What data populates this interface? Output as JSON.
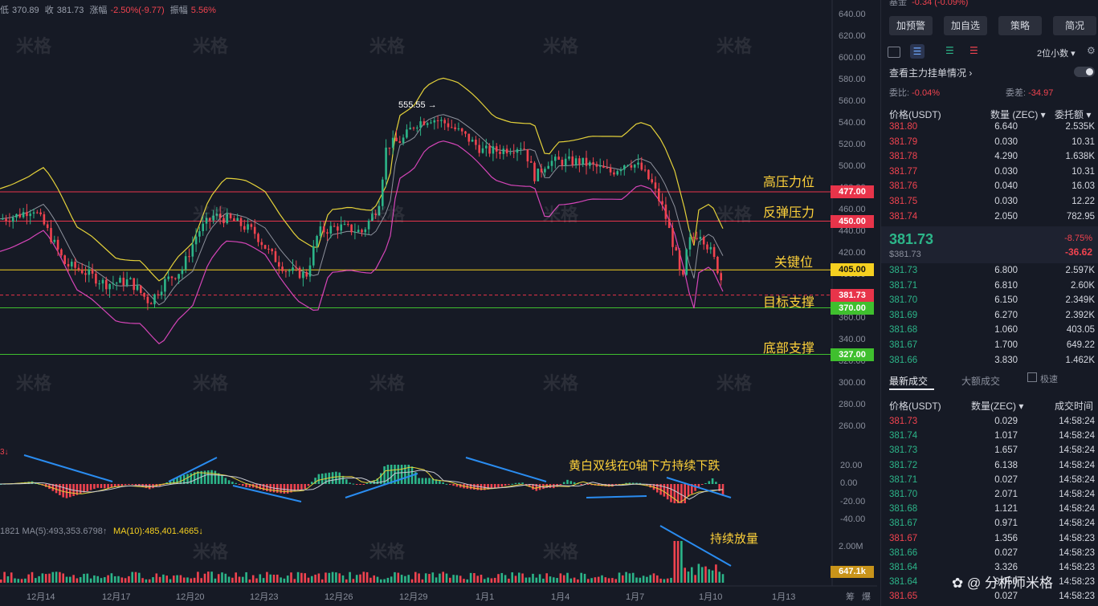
{
  "top_info": {
    "low_label": "低",
    "low_value": "370.89",
    "close_label": "收",
    "close_value": "381.73",
    "chg_label": "涨幅",
    "chg_value": "-2.50%(-9.77)",
    "amp_label": "振幅",
    "amp_value": "5.56%"
  },
  "watermark": "米格",
  "y_axis_labels": [
    "640.00",
    "620.00",
    "600.00",
    "580.00",
    "560.00",
    "540.00",
    "520.00",
    "500.00",
    "480.00",
    "460.00",
    "440.00",
    "420.00",
    "400.00",
    "380.00",
    "360.00",
    "340.00",
    "320.00",
    "300.00",
    "280.00",
    "260.00"
  ],
  "macd_axis_labels": [
    "20.00",
    "0.00",
    "-20.00",
    "-40.00"
  ],
  "vol_axis_labels": [
    "2.00M"
  ],
  "x_axis_labels": [
    "12月14",
    "12月17",
    "12月20",
    "12月23",
    "12月26",
    "12月29",
    "1月1",
    "1月4",
    "1月7",
    "1月10",
    "1月13"
  ],
  "x_axis_right": [
    "筹",
    "爆"
  ],
  "price_tags": [
    {
      "value": "477.00",
      "color": "#e8344a",
      "price": 477
    },
    {
      "value": "450.00",
      "color": "#e8344a",
      "price": 450
    },
    {
      "value": "405.00",
      "color": "#f5d020",
      "price": 405
    },
    {
      "value": "381.73",
      "color": "#e8344a",
      "price": 381.73
    },
    {
      "value": "370.00",
      "color": "#3fbf2e",
      "price": 370
    },
    {
      "value": "327.00",
      "color": "#3fbf2e",
      "price": 327
    }
  ],
  "levels": [
    {
      "label": "高压力位",
      "price": 477,
      "color": "#e8344a"
    },
    {
      "label": "反弹压力",
      "price": 450,
      "color": "#e8344a"
    },
    {
      "label": "关键位",
      "price": 405,
      "color": "#f5d020"
    },
    {
      "label": "目标支撑",
      "price": 381.73,
      "color": "#e8344a"
    },
    {
      "label": "底部支撑",
      "price": 327,
      "color": "#3fbf2e"
    }
  ],
  "peak_label": "555.55",
  "macd_annotation": "黄白双线在0轴下方持续下跌",
  "macd_left_fragment": "3↓",
  "volume_annotation": "持续放量",
  "volume_ma_label": "1821  MA(5):493,353.6798↑",
  "volume_ma10_label": "MA(10):485,401.4665↓",
  "volume_tag": "647.1k",
  "chart_data": {
    "type": "candlestick",
    "symbol_unit": "USDT",
    "ylim": [
      250,
      650
    ],
    "last_price": 381.73,
    "high_marker": 555.55,
    "x_categories": [
      "12月14",
      "12月17",
      "12月20",
      "12月23",
      "12月26",
      "12月29",
      "1月1",
      "1月4",
      "1月7",
      "1月10",
      "1月13"
    ],
    "support_resistance": [
      477,
      450,
      405,
      381.73,
      370,
      327
    ]
  },
  "panel": {
    "top_fragment": "-0.34 (-0.09%)",
    "top_left_fragment": "基金",
    "buttons": [
      "加预警",
      "加自选",
      "策略",
      "简况"
    ],
    "precision": "2位小数",
    "main_order_label": "查看主力挂单情况",
    "weibi_label": "委比:",
    "weibi_value": "-0.04%",
    "weicha_label": "委差:",
    "weicha_value": "-34.97",
    "ob_headers": [
      "价格(USDT)",
      "数量 (ZEC)",
      "委托额"
    ],
    "asks": [
      [
        "381.80",
        "6.640",
        "2.535K"
      ],
      [
        "381.79",
        "0.030",
        "10.31"
      ],
      [
        "381.78",
        "4.290",
        "1.638K"
      ],
      [
        "381.77",
        "0.030",
        "10.31"
      ],
      [
        "381.76",
        "0.040",
        "16.03"
      ],
      [
        "381.75",
        "0.030",
        "12.22"
      ],
      [
        "381.74",
        "2.050",
        "782.95"
      ]
    ],
    "last_price": "381.73",
    "last_price_usd": "$381.73",
    "change_pct": "-8.75%",
    "change_abs": "-36.62",
    "bids": [
      [
        "381.73",
        "6.800",
        "2.597K"
      ],
      [
        "381.71",
        "6.810",
        "2.60K"
      ],
      [
        "381.70",
        "6.150",
        "2.349K"
      ],
      [
        "381.69",
        "6.270",
        "2.392K"
      ],
      [
        "381.68",
        "1.060",
        "403.05"
      ],
      [
        "381.67",
        "1.700",
        "649.22"
      ],
      [
        "381.66",
        "3.830",
        "1.462K"
      ]
    ],
    "trade_tabs": [
      "最新成交",
      "大额成交"
    ],
    "fast_label": "极速",
    "trade_headers": [
      "价格(USDT)",
      "数量(ZEC)",
      "成交时间"
    ],
    "trades": [
      [
        "381.73",
        "0.029",
        "14:58:24",
        "sell"
      ],
      [
        "381.74",
        "1.017",
        "14:58:24",
        "buy"
      ],
      [
        "381.73",
        "1.657",
        "14:58:24",
        "buy"
      ],
      [
        "381.72",
        "6.138",
        "14:58:24",
        "buy"
      ],
      [
        "381.71",
        "0.027",
        "14:58:24",
        "buy"
      ],
      [
        "381.70",
        "2.071",
        "14:58:24",
        "buy"
      ],
      [
        "381.68",
        "1.121",
        "14:58:24",
        "buy"
      ],
      [
        "381.67",
        "0.971",
        "14:58:24",
        "buy"
      ],
      [
        "381.67",
        "1.356",
        "14:58:23",
        "sell"
      ],
      [
        "381.66",
        "0.027",
        "14:58:23",
        "buy"
      ],
      [
        "381.64",
        "3.326",
        "14:58:23",
        "buy"
      ],
      [
        "381.64",
        "0.050",
        "14:58:23",
        "buy"
      ],
      [
        "381.65",
        "0.027",
        "14:58:23",
        "sell"
      ]
    ],
    "footer_brand": "分析师米格"
  }
}
